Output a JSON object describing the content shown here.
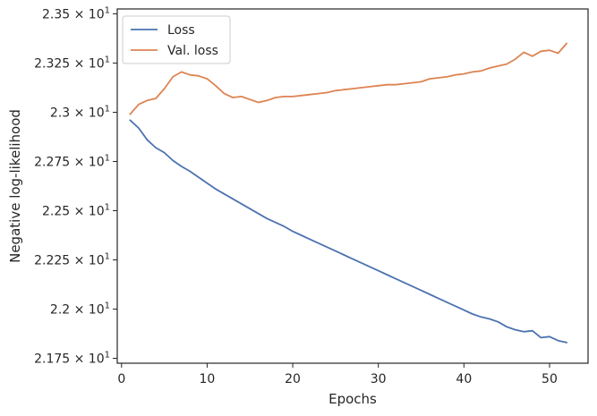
{
  "chart_data": {
    "type": "line",
    "xlabel": "Epochs",
    "ylabel": "Negative log-likelihood",
    "xlim": [
      -0.5,
      54.5
    ],
    "ylim": [
      21.725,
      23.525
    ],
    "x_ticks": [
      0,
      10,
      20,
      30,
      40,
      50
    ],
    "y_ticks": [
      {
        "value": 21.75,
        "mantissa": "2.175"
      },
      {
        "value": 22.0,
        "mantissa": "2.2"
      },
      {
        "value": 22.25,
        "mantissa": "2.225"
      },
      {
        "value": 22.5,
        "mantissa": "2.25"
      },
      {
        "value": 22.75,
        "mantissa": "2.275"
      },
      {
        "value": 23.0,
        "mantissa": "2.3"
      },
      {
        "value": 23.25,
        "mantissa": "2.325"
      },
      {
        "value": 23.5,
        "mantissa": "2.35"
      }
    ],
    "y_tick_suffix": {
      "times": "×",
      "base": "10",
      "exponent": "1"
    },
    "legend_position": "upper-left",
    "grid": false,
    "x": [
      1,
      2,
      3,
      4,
      5,
      6,
      7,
      8,
      9,
      10,
      11,
      12,
      13,
      14,
      15,
      16,
      17,
      18,
      19,
      20,
      21,
      22,
      23,
      24,
      25,
      26,
      27,
      28,
      29,
      30,
      31,
      32,
      33,
      34,
      35,
      36,
      37,
      38,
      39,
      40,
      41,
      42,
      43,
      44,
      45,
      46,
      47,
      48,
      49,
      50,
      51,
      52
    ],
    "series": [
      {
        "name": "Loss",
        "color": "#4c72b0",
        "values": [
          22.96,
          22.92,
          22.86,
          22.82,
          22.795,
          22.755,
          22.725,
          22.7,
          22.67,
          22.64,
          22.61,
          22.585,
          22.56,
          22.535,
          22.51,
          22.485,
          22.46,
          22.44,
          22.42,
          22.395,
          22.375,
          22.355,
          22.335,
          22.315,
          22.295,
          22.275,
          22.255,
          22.235,
          22.215,
          22.195,
          22.175,
          22.155,
          22.135,
          22.115,
          22.095,
          22.075,
          22.055,
          22.035,
          22.015,
          21.995,
          21.975,
          21.96,
          21.95,
          21.935,
          21.91,
          21.895,
          21.885,
          21.89,
          21.855,
          21.86,
          21.84,
          21.83
        ]
      },
      {
        "name": "Val. loss",
        "color": "#dd8452",
        "values": [
          22.99,
          23.04,
          23.06,
          23.07,
          23.12,
          23.18,
          23.205,
          23.19,
          23.185,
          23.17,
          23.135,
          23.095,
          23.075,
          23.08,
          23.065,
          23.05,
          23.06,
          23.075,
          23.08,
          23.08,
          23.085,
          23.09,
          23.095,
          23.1,
          23.11,
          23.115,
          23.12,
          23.125,
          23.13,
          23.135,
          23.14,
          23.14,
          23.145,
          23.15,
          23.155,
          23.17,
          23.175,
          23.18,
          23.19,
          23.195,
          23.205,
          23.21,
          23.225,
          23.235,
          23.245,
          23.27,
          23.305,
          23.285,
          23.31,
          23.315,
          23.3,
          23.35
        ]
      }
    ]
  }
}
